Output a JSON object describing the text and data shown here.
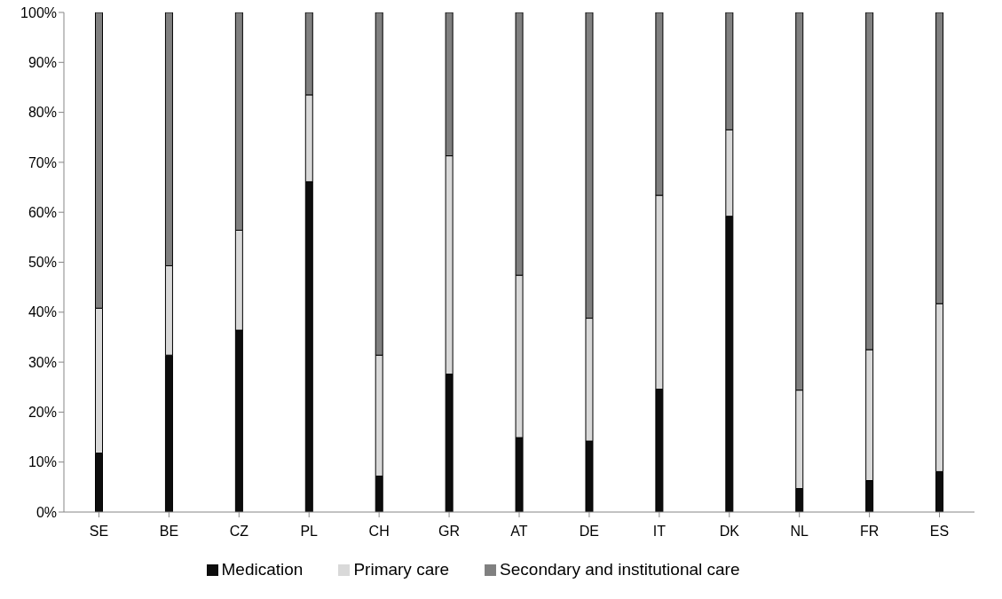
{
  "chart_data": {
    "type": "bar",
    "stacked": true,
    "categories": [
      "SE",
      "BE",
      "CZ",
      "PL",
      "CH",
      "GR",
      "AT",
      "DE",
      "IT",
      "DK",
      "NL",
      "FR",
      "ES"
    ],
    "series": [
      {
        "name": "Medication",
        "color": "#0d0d0d",
        "values": [
          11.8,
          31.4,
          36.4,
          66.1,
          7.2,
          27.6,
          14.9,
          14.2,
          24.6,
          59.2,
          4.7,
          6.3,
          8.1
        ]
      },
      {
        "name": "Primary care",
        "color": "#d9d9d9",
        "values": [
          29.0,
          17.9,
          20.0,
          17.4,
          24.2,
          43.7,
          32.5,
          24.6,
          38.8,
          17.3,
          19.7,
          26.2,
          33.6
        ]
      },
      {
        "name": "Secondary and institutional care",
        "color": "#808080",
        "values": [
          59.2,
          50.7,
          43.6,
          16.5,
          68.6,
          28.7,
          52.6,
          61.2,
          36.6,
          23.5,
          75.6,
          67.5,
          58.3
        ]
      }
    ],
    "ylim": [
      0,
      100
    ],
    "yticks": [
      {
        "value": 0,
        "label": "0%"
      },
      {
        "value": 10,
        "label": "10%"
      },
      {
        "value": 20,
        "label": "20%"
      },
      {
        "value": 30,
        "label": "30%"
      },
      {
        "value": 40,
        "label": "40%"
      },
      {
        "value": 50,
        "label": "50%"
      },
      {
        "value": 60,
        "label": "60%"
      },
      {
        "value": 70,
        "label": "70%"
      },
      {
        "value": 80,
        "label": "80%"
      },
      {
        "value": 90,
        "label": "90%"
      },
      {
        "value": 100,
        "label": "100%"
      }
    ],
    "grid": false,
    "legend": "bottom"
  }
}
